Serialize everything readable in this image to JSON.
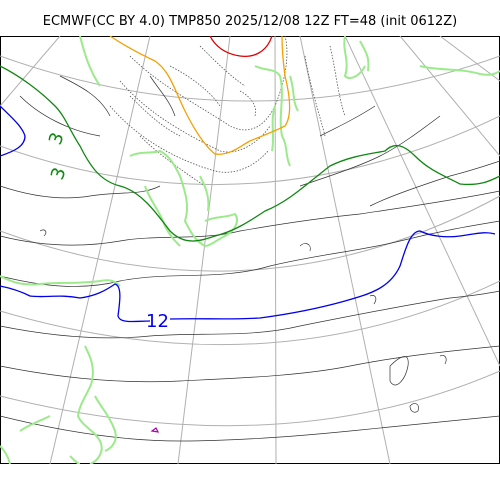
{
  "title": "ECMWF(CC BY 4.0) TMP850 2025/12/08 12Z FT=48 (init 0612Z)",
  "map": {
    "description_labels": {
      "contour_3": "3",
      "contour_3b": "3",
      "contour_12": "12"
    },
    "colors": {
      "graticule": "#b0b0b0",
      "coastline": "#9cea8c",
      "thin_isotherm": "#333333",
      "dotted_isotherm": "#555555",
      "contour_3c": "#118811",
      "contour_12c": "#0000ee",
      "contour_orange": "#f5a000",
      "contour_red": "#dd0000",
      "magenta": "#aa00aa"
    }
  }
}
